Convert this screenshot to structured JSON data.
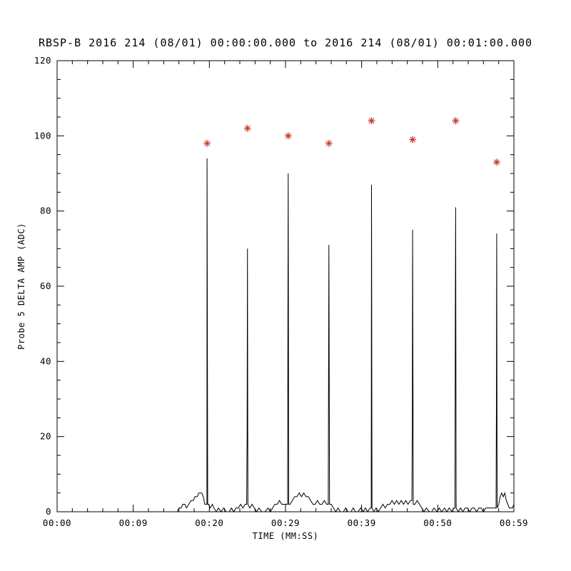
{
  "chart_data": {
    "type": "line",
    "title": "RBSP-B 2016 214 (08/01) 00:00:00.000 to 2016 214 (08/01) 00:01:00.000",
    "xlabel": "TIME (MM:SS)",
    "ylabel": "Probe 5 DELTA AMP (ADC)",
    "xlim_seconds": [
      0,
      60
    ],
    "ylim": [
      0,
      120
    ],
    "grid": "off",
    "legend": "none",
    "line_color": "#000000",
    "marker_color": "#cc3322",
    "x_ticks": [
      {
        "t": 0,
        "label": "00:00"
      },
      {
        "t": 10,
        "label": "00:09"
      },
      {
        "t": 20,
        "label": "00:20"
      },
      {
        "t": 30,
        "label": "00:29"
      },
      {
        "t": 40,
        "label": "00:39"
      },
      {
        "t": 50,
        "label": "00:50"
      },
      {
        "t": 60,
        "label": "00:59"
      }
    ],
    "y_ticks": [
      0,
      20,
      40,
      60,
      80,
      100,
      120
    ],
    "series": {
      "name": "Probe 5 DELTA AMP",
      "points": [
        [
          15.8,
          0
        ],
        [
          16.0,
          1
        ],
        [
          16.3,
          1
        ],
        [
          16.5,
          2
        ],
        [
          16.8,
          2
        ],
        [
          17.0,
          1
        ],
        [
          17.3,
          2
        ],
        [
          17.6,
          3
        ],
        [
          17.9,
          3
        ],
        [
          18.1,
          4
        ],
        [
          18.4,
          4
        ],
        [
          18.6,
          5
        ],
        [
          19.0,
          5
        ],
        [
          19.2,
          4
        ],
        [
          19.4,
          2
        ],
        [
          19.6,
          2
        ],
        [
          19.68,
          2
        ],
        [
          19.7,
          94
        ],
        [
          19.78,
          2
        ],
        [
          19.9,
          2
        ],
        [
          20.1,
          1
        ],
        [
          20.4,
          2
        ],
        [
          20.6,
          1
        ],
        [
          20.9,
          0
        ],
        [
          21.2,
          1
        ],
        [
          21.5,
          0
        ],
        [
          21.9,
          1
        ],
        [
          22.2,
          0
        ],
        [
          22.6,
          0
        ],
        [
          22.9,
          1
        ],
        [
          23.2,
          0
        ],
        [
          23.5,
          1
        ],
        [
          23.8,
          1
        ],
        [
          24.1,
          2
        ],
        [
          24.4,
          1
        ],
        [
          24.7,
          2
        ],
        [
          24.9,
          2
        ],
        [
          24.96,
          20
        ],
        [
          25.0,
          70
        ],
        [
          25.06,
          2
        ],
        [
          25.3,
          1
        ],
        [
          25.6,
          2
        ],
        [
          25.9,
          1
        ],
        [
          26.2,
          0
        ],
        [
          26.5,
          1
        ],
        [
          26.9,
          0
        ],
        [
          27.3,
          0
        ],
        [
          27.7,
          1
        ],
        [
          28.0,
          0
        ],
        [
          28.3,
          1
        ],
        [
          28.6,
          2
        ],
        [
          28.9,
          2
        ],
        [
          29.2,
          3
        ],
        [
          29.5,
          2
        ],
        [
          29.8,
          2
        ],
        [
          30.1,
          2
        ],
        [
          30.28,
          2
        ],
        [
          30.32,
          54
        ],
        [
          30.36,
          90
        ],
        [
          30.42,
          2
        ],
        [
          30.6,
          2
        ],
        [
          30.9,
          3
        ],
        [
          31.2,
          4
        ],
        [
          31.5,
          4
        ],
        [
          31.8,
          5
        ],
        [
          32.1,
          4
        ],
        [
          32.4,
          5
        ],
        [
          32.7,
          4
        ],
        [
          33.0,
          4
        ],
        [
          33.3,
          3
        ],
        [
          33.6,
          2
        ],
        [
          33.9,
          2
        ],
        [
          34.2,
          3
        ],
        [
          34.5,
          2
        ],
        [
          34.8,
          2
        ],
        [
          35.1,
          3
        ],
        [
          35.4,
          2
        ],
        [
          35.62,
          2
        ],
        [
          35.7,
          71
        ],
        [
          35.78,
          2
        ],
        [
          36.0,
          2
        ],
        [
          36.3,
          1
        ],
        [
          36.6,
          0
        ],
        [
          36.9,
          1
        ],
        [
          37.2,
          0
        ],
        [
          37.6,
          0
        ],
        [
          37.9,
          1
        ],
        [
          38.2,
          0
        ],
        [
          38.6,
          0
        ],
        [
          38.9,
          1
        ],
        [
          39.2,
          0
        ],
        [
          39.5,
          0
        ],
        [
          39.9,
          1
        ],
        [
          40.2,
          0
        ],
        [
          40.5,
          1
        ],
        [
          40.8,
          0
        ],
        [
          41.1,
          1
        ],
        [
          41.26,
          1
        ],
        [
          41.3,
          87
        ],
        [
          41.36,
          1
        ],
        [
          41.6,
          0
        ],
        [
          41.9,
          1
        ],
        [
          42.2,
          0
        ],
        [
          42.5,
          1
        ],
        [
          42.8,
          2
        ],
        [
          43.1,
          1
        ],
        [
          43.4,
          2
        ],
        [
          43.7,
          2
        ],
        [
          44.0,
          3
        ],
        [
          44.3,
          2
        ],
        [
          44.6,
          3
        ],
        [
          44.9,
          2
        ],
        [
          45.2,
          3
        ],
        [
          45.5,
          2
        ],
        [
          45.8,
          3
        ],
        [
          46.1,
          2
        ],
        [
          46.4,
          3
        ],
        [
          46.6,
          3
        ],
        [
          46.66,
          25
        ],
        [
          46.7,
          75
        ],
        [
          46.78,
          2
        ],
        [
          47.0,
          2
        ],
        [
          47.3,
          3
        ],
        [
          47.6,
          2
        ],
        [
          47.9,
          1
        ],
        [
          48.2,
          0
        ],
        [
          48.5,
          1
        ],
        [
          48.9,
          0
        ],
        [
          49.2,
          0
        ],
        [
          49.5,
          1
        ],
        [
          49.9,
          0
        ],
        [
          50.2,
          1
        ],
        [
          50.5,
          0
        ],
        [
          50.9,
          1
        ],
        [
          51.2,
          0
        ],
        [
          51.5,
          1
        ],
        [
          51.9,
          0
        ],
        [
          52.1,
          1
        ],
        [
          52.26,
          1
        ],
        [
          52.31,
          58
        ],
        [
          52.35,
          81
        ],
        [
          52.42,
          1
        ],
        [
          52.7,
          0
        ],
        [
          53.0,
          1
        ],
        [
          53.3,
          0
        ],
        [
          53.6,
          1
        ],
        [
          53.9,
          1
        ],
        [
          54.2,
          0
        ],
        [
          54.5,
          1
        ],
        [
          54.8,
          1
        ],
        [
          55.1,
          0
        ],
        [
          55.4,
          1
        ],
        [
          55.7,
          1
        ],
        [
          56.0,
          0
        ],
        [
          56.3,
          1
        ],
        [
          56.6,
          1
        ],
        [
          56.9,
          1
        ],
        [
          57.2,
          1
        ],
        [
          57.5,
          1
        ],
        [
          57.66,
          1
        ],
        [
          57.7,
          28
        ],
        [
          57.74,
          74
        ],
        [
          57.8,
          1
        ],
        [
          58.0,
          2
        ],
        [
          58.2,
          4
        ],
        [
          58.4,
          5
        ],
        [
          58.6,
          4
        ],
        [
          58.8,
          5
        ],
        [
          59.0,
          3
        ],
        [
          59.2,
          2
        ],
        [
          59.4,
          1
        ],
        [
          59.6,
          1
        ],
        [
          59.8,
          1
        ],
        [
          60.0,
          2
        ]
      ]
    },
    "peaks": {
      "marker": "asterisk",
      "points": [
        [
          19.7,
          98
        ],
        [
          25.0,
          102
        ],
        [
          30.36,
          100
        ],
        [
          35.7,
          98
        ],
        [
          41.3,
          104
        ],
        [
          46.7,
          99
        ],
        [
          52.35,
          104
        ],
        [
          57.74,
          93
        ]
      ]
    }
  }
}
